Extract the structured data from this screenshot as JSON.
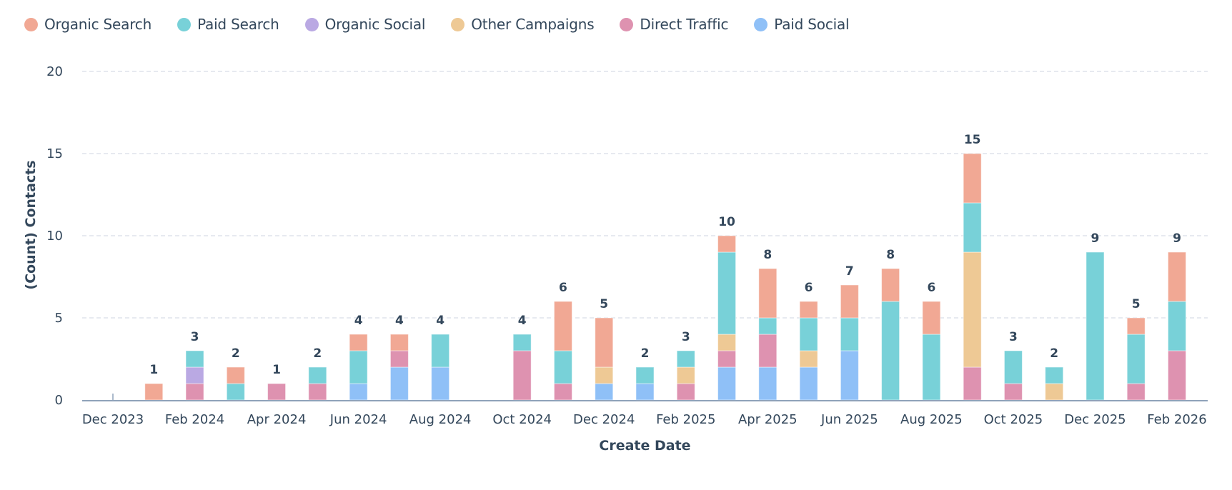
{
  "chart_data": {
    "type": "bar",
    "stacked": true,
    "title": "",
    "xlabel": "Create Date",
    "ylabel": "(Count) Contacts",
    "ylim": [
      0,
      20
    ],
    "yticks": [
      0,
      5,
      10,
      15,
      20
    ],
    "grid": true,
    "legend_position": "top-left",
    "categories": [
      "Dec 2023",
      "Jan 2024",
      "Feb 2024",
      "Mar 2024",
      "Apr 2024",
      "May 2024",
      "Jun 2024",
      "Jul 2024",
      "Aug 2024",
      "Sep 2024",
      "Oct 2024",
      "Nov 2024",
      "Dec 2024",
      "Jan 2025",
      "Feb 2025",
      "Mar 2025",
      "Apr 2025",
      "May 2025",
      "Jun 2025",
      "Jul 2025",
      "Aug 2025",
      "Sep 2025",
      "Oct 2025",
      "Nov 2025",
      "Dec 2025",
      "Jan 2026",
      "Feb 2026"
    ],
    "xtick_labels": [
      "Dec 2023",
      "Feb 2024",
      "Apr 2024",
      "Jun 2024",
      "Aug 2024",
      "Oct 2024",
      "Dec 2024",
      "Feb 2025",
      "Apr 2025",
      "Jun 2025",
      "Aug 2025",
      "Oct 2025",
      "Dec 2025",
      "Feb 2026"
    ],
    "series": [
      {
        "name": "Paid Social",
        "color": "#8fc0f7",
        "values": [
          0,
          0,
          0,
          0,
          0,
          0,
          1,
          2,
          2,
          0,
          0,
          0,
          1,
          1,
          0,
          2,
          2,
          2,
          3,
          0,
          0,
          0,
          0,
          0,
          0,
          0,
          0
        ]
      },
      {
        "name": "Direct Traffic",
        "color": "#de92b0",
        "values": [
          0,
          0,
          1,
          0,
          1,
          1,
          0,
          1,
          0,
          0,
          3,
          1,
          0,
          0,
          1,
          1,
          2,
          0,
          0,
          0,
          0,
          2,
          1,
          0,
          0,
          1,
          3
        ]
      },
      {
        "name": "Other Campaigns",
        "color": "#eec995",
        "values": [
          0,
          0,
          0,
          0,
          0,
          0,
          0,
          0,
          0,
          0,
          0,
          0,
          1,
          0,
          1,
          1,
          0,
          1,
          0,
          0,
          0,
          7,
          0,
          1,
          0,
          0,
          0
        ]
      },
      {
        "name": "Organic Social",
        "color": "#baa9e3",
        "values": [
          0,
          0,
          1,
          0,
          0,
          0,
          0,
          0,
          0,
          0,
          0,
          0,
          0,
          0,
          0,
          0,
          0,
          0,
          0,
          0,
          0,
          0,
          0,
          0,
          0,
          0,
          0
        ]
      },
      {
        "name": "Paid Search",
        "color": "#78d1d8",
        "values": [
          0,
          0,
          1,
          1,
          0,
          1,
          2,
          0,
          2,
          0,
          1,
          2,
          0,
          1,
          1,
          5,
          1,
          2,
          2,
          6,
          4,
          3,
          2,
          1,
          9,
          3,
          3
        ]
      },
      {
        "name": "Organic Search",
        "color": "#f1a894",
        "values": [
          0,
          1,
          0,
          1,
          0,
          0,
          1,
          1,
          0,
          0,
          0,
          3,
          3,
          0,
          0,
          1,
          3,
          1,
          2,
          2,
          2,
          3,
          0,
          0,
          0,
          1,
          3
        ]
      }
    ],
    "totals": [
      0,
      1,
      3,
      2,
      1,
      2,
      4,
      4,
      4,
      0,
      4,
      6,
      5,
      2,
      3,
      10,
      8,
      6,
      7,
      8,
      6,
      15,
      3,
      2,
      9,
      5,
      9
    ]
  },
  "legend": [
    {
      "label": "Organic Search",
      "color": "#f1a894"
    },
    {
      "label": "Paid Search",
      "color": "#78d1d8"
    },
    {
      "label": "Organic Social",
      "color": "#baa9e3"
    },
    {
      "label": "Other Campaigns",
      "color": "#eec995"
    },
    {
      "label": "Direct Traffic",
      "color": "#de92b0"
    },
    {
      "label": "Paid Social",
      "color": "#8fc0f7"
    }
  ]
}
